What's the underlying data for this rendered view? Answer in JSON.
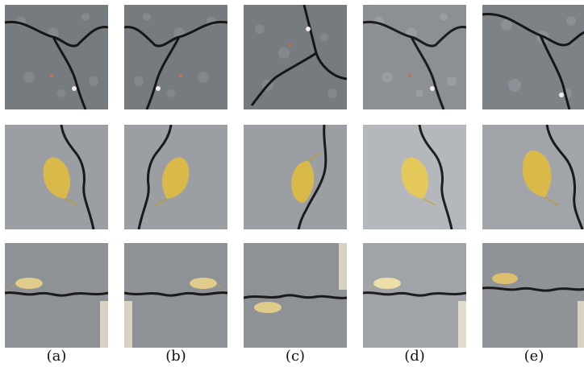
{
  "figure": {
    "captions": [
      "(a)",
      "(b)",
      "(c)",
      "(d)",
      "(e)"
    ],
    "rows": [
      {
        "scene": "crack-pavement-closeup",
        "variants": [
          "original",
          "mirrored",
          "rotated",
          "brightened",
          "cropped"
        ]
      },
      {
        "scene": "crack-with-leaf",
        "variants": [
          "original",
          "mirrored",
          "rotated",
          "brightened",
          "cropped"
        ]
      },
      {
        "scene": "horizontal-crack-with-leaf",
        "variants": [
          "original",
          "mirrored",
          "rotated",
          "brightened",
          "cropped"
        ]
      }
    ],
    "colors": {
      "asphalt": "#7c8184",
      "concrete": "#9a9ea3",
      "crack": "#1a1a1a",
      "leaf": "#d9b94a",
      "curb": "#d8d2c2"
    }
  }
}
